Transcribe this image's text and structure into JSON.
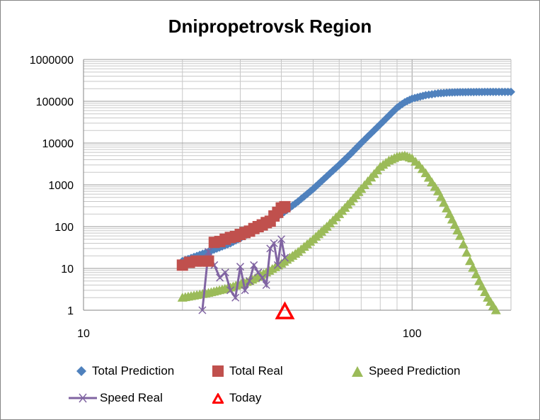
{
  "chart_data": {
    "type": "scatter",
    "title": "Dnipropetrovsk Region",
    "x_scale": "log",
    "y_scale": "log",
    "xlim": [
      10,
      200
    ],
    "ylim": [
      1,
      1000000
    ],
    "x_ticks": [
      "10",
      "100"
    ],
    "y_ticks": [
      "1",
      "10",
      "100",
      "1000",
      "10000",
      "100000",
      "1000000"
    ],
    "grid": true,
    "legend_placement": "bottom",
    "colors": {
      "total_prediction": "#4F81BD",
      "total_real": "#C0504D",
      "speed_prediction": "#9BBB59",
      "speed_real": "#8064A2",
      "today": "#FF0000"
    },
    "series": [
      {
        "name": "Total Prediction",
        "marker": "diamond",
        "x": [
          20,
          24,
          28,
          32,
          36,
          40,
          45,
          50,
          55,
          60,
          65,
          70,
          75,
          80,
          85,
          90,
          95,
          100,
          110,
          120,
          130,
          140,
          160,
          180,
          200
        ],
        "y": [
          15,
          25,
          40,
          70,
          120,
          200,
          400,
          800,
          1600,
          3000,
          5500,
          10000,
          17000,
          28000,
          45000,
          70000,
          95000,
          115000,
          140000,
          155000,
          162000,
          165000,
          167000,
          168000,
          168000
        ]
      },
      {
        "name": "Total Real",
        "marker": "square",
        "x": [
          20,
          21,
          22,
          23,
          24,
          25,
          26,
          27,
          28,
          29,
          30,
          31,
          32,
          33,
          34,
          35,
          36,
          37,
          38,
          39,
          40,
          41
        ],
        "y": [
          12,
          14,
          15,
          15,
          15,
          42,
          44,
          50,
          55,
          58,
          65,
          72,
          78,
          90,
          100,
          110,
          125,
          135,
          180,
          220,
          280,
          300
        ]
      },
      {
        "name": "Speed Prediction",
        "marker": "triangle",
        "x": [
          20,
          24,
          28,
          32,
          36,
          40,
          45,
          50,
          55,
          60,
          65,
          70,
          75,
          80,
          85,
          90,
          95,
          100,
          105,
          110,
          120,
          130,
          140,
          150,
          160,
          170,
          180
        ],
        "y": [
          2,
          2.6,
          3.5,
          5,
          8,
          13,
          25,
          50,
          100,
          200,
          400,
          800,
          1500,
          2700,
          3800,
          4700,
          5000,
          4300,
          3000,
          1900,
          700,
          200,
          60,
          15,
          5,
          2,
          1
        ]
      },
      {
        "name": "Speed Real",
        "marker": "x-line",
        "x": [
          23,
          24,
          25,
          26,
          27,
          28,
          29,
          30,
          31,
          32,
          33,
          34,
          35,
          36,
          37,
          38,
          39,
          40,
          41
        ],
        "y": [
          1,
          25,
          12,
          6,
          8,
          3,
          2,
          11,
          3,
          5,
          12,
          8,
          6,
          4,
          30,
          40,
          12,
          50,
          18
        ]
      },
      {
        "name": "Today",
        "marker": "triangle-open",
        "x": [
          41
        ],
        "y": [
          1
        ]
      }
    ]
  }
}
